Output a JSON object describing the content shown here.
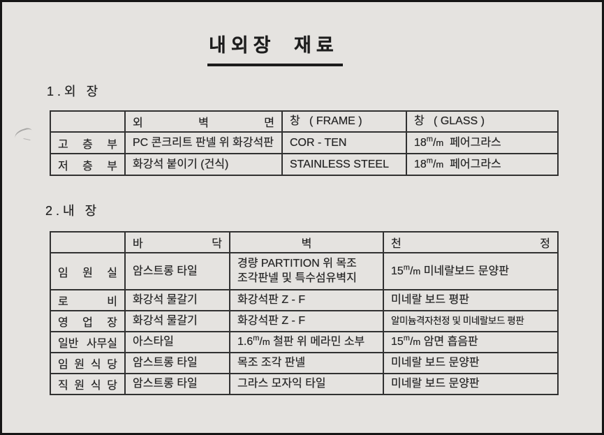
{
  "doc": {
    "title": "내외장 재료",
    "sections": [
      {
        "heading": "1.외 장",
        "table": {
          "headers": [
            "",
            "외 벽 면",
            "창   ( FRAME )",
            "창   ( GLASS )"
          ],
          "rows": [
            {
              "label": "고 층 부",
              "cells": [
                "PC 콘크리트 판넬 위 화강석판",
                "COR - TEN",
                "18m/m  페어그라스"
              ]
            },
            {
              "label": "저 층 부",
              "cells": [
                "화강석 붙이기 (건식)",
                "STAINLESS STEEL",
                "18m/m  페어그라스"
              ]
            }
          ]
        }
      },
      {
        "heading": "2.내 장",
        "table": {
          "headers": [
            "",
            "바 닥",
            "벽",
            "천 정"
          ],
          "rows": [
            {
              "label": "임 원 실",
              "cells": [
                "암스트롱 타일",
                "경량 PARTITION 위 목조\n조각판넬 및 특수섬유벽지",
                "15m/m 미네랄보드 문양판"
              ]
            },
            {
              "label": "로 비",
              "cells": [
                "화강석 물갈기",
                "화강석판 Z - F",
                "미네랄 보드 평판"
              ]
            },
            {
              "label": "영 업 장",
              "cells": [
                "화강석 물갈기",
                "화강석판 Z - F",
                "알미늄격자천정 및 미네랄보드 평판"
              ]
            },
            {
              "label": "일반 사무실",
              "cells": [
                "아스타일",
                "1.6m/m 철판 위 메라민 소부",
                "15m/m 암면 흡음판"
              ]
            },
            {
              "label": "임 원 식 당",
              "cells": [
                "암스트롱 타일",
                "목조 조각 판넬",
                "미네랄 보드 문양판"
              ]
            },
            {
              "label": "직 원 식 당",
              "cells": [
                "암스트롱 타일",
                "그라스 모자익 타일",
                "미네랄 보드 문양판"
              ]
            }
          ]
        }
      }
    ]
  },
  "colors": {
    "paper": "#e5e3e0",
    "ink": "#272727",
    "table_border": "#313131"
  }
}
